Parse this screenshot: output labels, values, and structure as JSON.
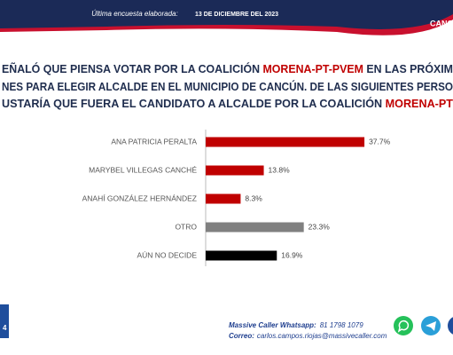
{
  "header": {
    "survey_label": "Última encuesta elaborada:",
    "survey_date": "13 DE DICIEMBRE DEL 2023",
    "place": "CANC"
  },
  "question_lines": [
    [
      "EÑALÓ QUE PIENSA VOTAR POR LA COALICIÓN ",
      "MORENA-PT-PVEM",
      " EN LAS PRÓXIM"
    ],
    [
      "NES PARA ELEGIR ALCALDE EN EL MUNICIPIO DE CANCÚN. DE LAS SIGUIENTES PERSO"
    ],
    [
      "USTARÍA QUE FUERA EL CANDIDATO A ALCALDE POR LA COALICIÓN ",
      "MORENA-PT"
    ]
  ],
  "chart_data": {
    "type": "bar",
    "orientation": "horizontal",
    "categories": [
      "ANA PATRICIA PERALTA",
      "MARYBEL VILLEGAS CANCHÉ",
      "ANAHÍ GONZÁLEZ HERNÁNDEZ",
      "OTRO",
      "AÚN NO DECIDE"
    ],
    "values": [
      37.7,
      13.8,
      8.3,
      23.3,
      16.9
    ],
    "value_labels": [
      "37.7%",
      "13.8%",
      "8.3%",
      "23.3%",
      "16.9%"
    ],
    "colors": [
      "#c00000",
      "#c00000",
      "#c00000",
      "#808080",
      "#000000"
    ]
  },
  "footer": {
    "whatsapp_label": "Massive Caller Whatsapp:",
    "whatsapp_number": "81 1798 1079",
    "email_label": "Correo:",
    "email": "carlos.campos.riojas@massivecaller.com",
    "page_badge": "4"
  }
}
